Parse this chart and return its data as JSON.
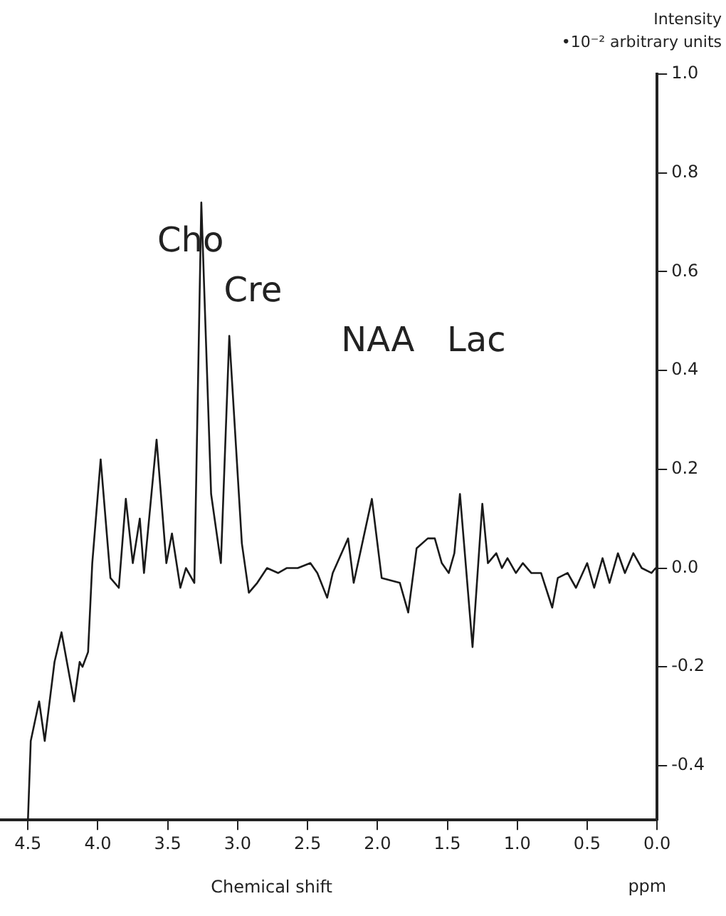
{
  "chart_data": {
    "type": "line",
    "xlabel": "Chemical shift",
    "ylabel": "Intensity\n•10⁻² arbitrary units",
    "x": [
      4.5,
      4.48,
      4.42,
      4.38,
      4.31,
      4.26,
      4.17,
      4.13,
      4.11,
      4.07,
      4.04,
      3.98,
      3.91,
      3.85,
      3.8,
      3.75,
      3.7,
      3.67,
      3.58,
      3.51,
      3.47,
      3.41,
      3.37,
      3.31,
      3.26,
      3.19,
      3.12,
      3.06,
      2.97,
      2.92,
      2.86,
      2.79,
      2.71,
      2.65,
      2.57,
      2.48,
      2.43,
      2.36,
      2.32,
      2.21,
      2.17,
      2.04,
      1.97,
      1.84,
      1.78,
      1.72,
      1.64,
      1.59,
      1.54,
      1.49,
      1.45,
      1.41,
      1.32,
      1.25,
      1.21,
      1.15,
      1.11,
      1.07,
      1.01,
      0.96,
      0.9,
      0.83,
      0.75,
      0.71,
      0.64,
      0.58,
      0.5,
      0.45,
      0.39,
      0.34,
      0.28,
      0.23,
      0.17,
      0.11,
      0.04,
      0.01
    ],
    "series": [
      {
        "color": "#1a1a1a",
        "values": [
          -0.51,
          -0.35,
          -0.27,
          -0.35,
          -0.19,
          -0.13,
          -0.27,
          -0.19,
          -0.2,
          -0.17,
          0.01,
          0.22,
          -0.02,
          -0.04,
          0.14,
          0.01,
          0.1,
          -0.01,
          0.26,
          0.01,
          0.07,
          -0.04,
          0,
          -0.03,
          0.74,
          0.15,
          0.01,
          0.47,
          0.05,
          -0.05,
          -0.03,
          0,
          -0.01,
          0,
          0,
          0.01,
          -0.01,
          -0.06,
          -0.01,
          0.06,
          -0.03,
          0.14,
          -0.02,
          -0.03,
          -0.09,
          0.04,
          0.06,
          0.06,
          0.01,
          -0.01,
          0.03,
          0.15,
          -0.16,
          0.13,
          0.01,
          0.03,
          0,
          0.02,
          -0.01,
          0.01,
          -0.01,
          -0.01,
          -0.08,
          -0.02,
          -0.01,
          -0.04,
          0.01,
          -0.04,
          0.02,
          -0.03,
          0.03,
          -0.01,
          0.03,
          0,
          -0.01,
          0
        ]
      }
    ],
    "xlim": [
      4.7,
      0
    ],
    "ylim": [
      -0.51,
      1.0
    ],
    "xticks": [
      {
        "value": 4.5,
        "label": "4.5"
      },
      {
        "value": 4,
        "label": "4.0"
      },
      {
        "value": 3.5,
        "label": "3.5"
      },
      {
        "value": 3,
        "label": "3.0"
      },
      {
        "value": 2.5,
        "label": "2.5"
      },
      {
        "value": 2,
        "label": "2.0"
      },
      {
        "value": 1.5,
        "label": "1.5"
      },
      {
        "value": 1,
        "label": "1.0"
      },
      {
        "value": 0.5,
        "label": "0.5"
      },
      {
        "value": 0,
        "label": "0.0"
      }
    ],
    "yticks": [
      {
        "value": -0.4,
        "label": "-0.4"
      },
      {
        "value": -0.2,
        "label": "-0.2"
      },
      {
        "value": 0,
        "label": "0.0"
      },
      {
        "value": 0.2,
        "label": "0.2"
      },
      {
        "value": 0.4,
        "label": "0.4"
      },
      {
        "value": 0.6,
        "label": "0.6"
      },
      {
        "value": 0.8,
        "label": "0.8"
      },
      {
        "value": 1,
        "label": "1.0"
      }
    ],
    "annotations": [
      "Cho",
      "Cre",
      "NAA",
      "Lac",
      "ppm"
    ],
    "grid": false,
    "legend": false,
    "marker": "none",
    "line_style": "solid"
  }
}
